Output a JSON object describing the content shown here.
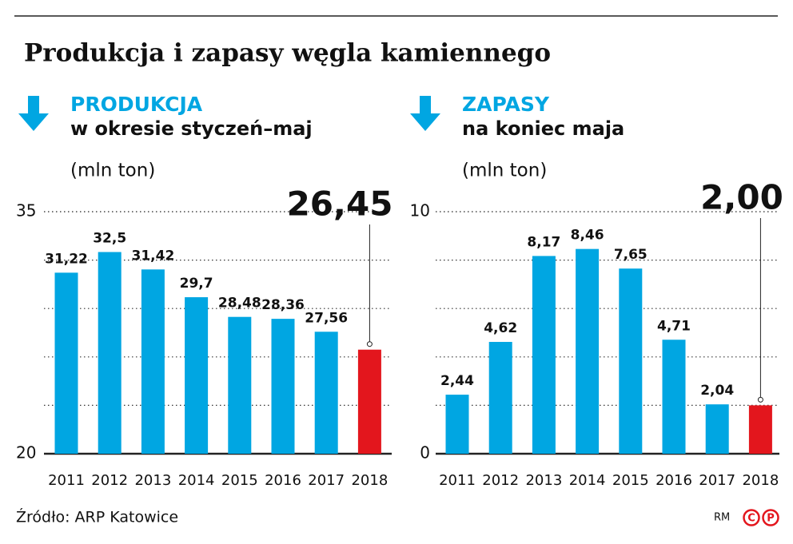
{
  "title": "Produkcja i zapasy węgla kamiennego",
  "source": "Źródło: ARP Katowice",
  "credit": "RM",
  "chart_data": [
    {
      "type": "bar",
      "title": "PRODUKCJA",
      "subtitle": "w okresie styczeń–maj",
      "unit": "(mln ton)",
      "categories": [
        "2011",
        "2012",
        "2013",
        "2014",
        "2015",
        "2016",
        "2017",
        "2018"
      ],
      "values": [
        31.22,
        32.5,
        31.42,
        29.7,
        28.48,
        28.36,
        27.56,
        26.45
      ],
      "value_labels": [
        "31,22",
        "32,5",
        "31,42",
        "29,7",
        "28,48",
        "28,36",
        "27,56",
        "26,45"
      ],
      "colors": [
        "#00a6e2",
        "#00a6e2",
        "#00a6e2",
        "#00a6e2",
        "#00a6e2",
        "#00a6e2",
        "#00a6e2",
        "#e3161d"
      ],
      "ylim": [
        20,
        35
      ],
      "yticks": [
        20,
        35
      ],
      "minor_ticks": [
        23,
        26,
        29,
        32
      ],
      "grid": true
    },
    {
      "type": "bar",
      "title": "ZAPASY",
      "subtitle": "na koniec maja",
      "unit": "(mln ton)",
      "categories": [
        "2011",
        "2012",
        "2013",
        "2014",
        "2015",
        "2016",
        "2017",
        "2018"
      ],
      "values": [
        2.44,
        4.62,
        8.17,
        8.46,
        7.65,
        4.71,
        2.04,
        2.0
      ],
      "value_labels": [
        "2,44",
        "4,62",
        "8,17",
        "8,46",
        "7,65",
        "4,71",
        "2,04",
        "2,00"
      ],
      "colors": [
        "#00a6e2",
        "#00a6e2",
        "#00a6e2",
        "#00a6e2",
        "#00a6e2",
        "#00a6e2",
        "#00a6e2",
        "#e3161d"
      ],
      "ylim": [
        0,
        10
      ],
      "yticks": [
        0,
        10
      ],
      "minor_ticks": [
        2,
        4,
        6,
        8
      ],
      "grid": true
    }
  ]
}
